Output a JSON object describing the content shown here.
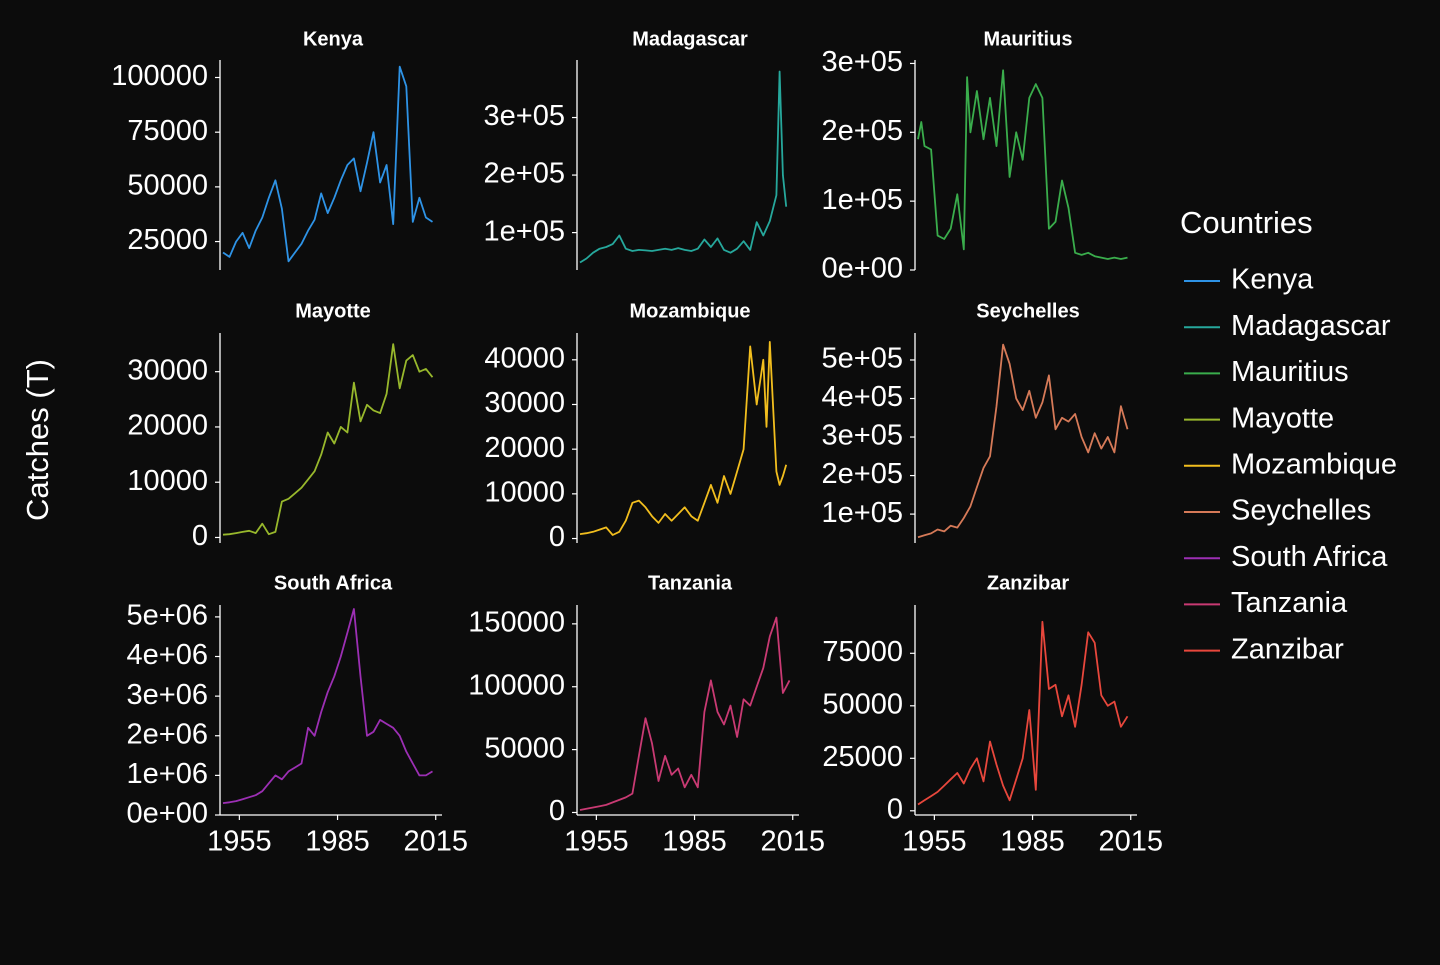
{
  "colors": {
    "background": "#0c0c0c",
    "axis": "#ffffff",
    "text": "#ffffff"
  },
  "chart_data": {
    "type": "line",
    "ylabel": "Catches (T)",
    "xlabel": "",
    "legend": {
      "title": "Countries",
      "position": "right",
      "entries": [
        {
          "label": "Kenya",
          "color": "#2e93e6"
        },
        {
          "label": "Madagascar",
          "color": "#26a89c"
        },
        {
          "label": "Mauritius",
          "color": "#3aad4c"
        },
        {
          "label": "Mayotte",
          "color": "#98b82c"
        },
        {
          "label": "Mozambique",
          "color": "#f2be1e"
        },
        {
          "label": "Seychelles",
          "color": "#d67a58"
        },
        {
          "label": "South Africa",
          "color": "#9c2fb4"
        },
        {
          "label": "Tanzania",
          "color": "#c93a73"
        },
        {
          "label": "Zanzibar",
          "color": "#e8473c"
        }
      ]
    },
    "x_ticks": [
      1955,
      1985,
      2015
    ],
    "xlim": [
      1950,
      2016
    ],
    "grid": false,
    "panels": [
      {
        "title": "Kenya",
        "color": "#2e93e6",
        "ylim": [
          12000,
          108000
        ],
        "y_ticks": [
          25000,
          50000,
          75000,
          100000
        ],
        "y_tick_labels": [
          "25000",
          "50000",
          "75000",
          "100000"
        ],
        "x": [
          1950,
          1952,
          1954,
          1956,
          1958,
          1960,
          1962,
          1964,
          1966,
          1968,
          1970,
          1972,
          1974,
          1976,
          1978,
          1980,
          1982,
          1984,
          1986,
          1988,
          1990,
          1992,
          1994,
          1996,
          1998,
          2000,
          2002,
          2004,
          2006,
          2008,
          2010,
          2012,
          2014
        ],
        "y": [
          20000,
          18000,
          25000,
          29000,
          22000,
          30000,
          36000,
          45000,
          53000,
          40000,
          16000,
          20000,
          24000,
          30000,
          35000,
          47000,
          38000,
          45000,
          53000,
          60000,
          63000,
          48000,
          61000,
          75000,
          52000,
          60000,
          33000,
          105000,
          96000,
          34000,
          45000,
          36000,
          34000
        ]
      },
      {
        "title": "Madagascar",
        "color": "#26a89c",
        "ylim": [
          35000,
          400000
        ],
        "y_ticks": [
          100000,
          200000,
          300000
        ],
        "y_tick_labels": [
          "1e+05",
          "2e+05",
          "3e+05"
        ],
        "x": [
          1950,
          1952,
          1954,
          1956,
          1958,
          1960,
          1962,
          1964,
          1966,
          1968,
          1970,
          1972,
          1974,
          1976,
          1978,
          1980,
          1982,
          1984,
          1986,
          1988,
          1990,
          1992,
          1994,
          1996,
          1998,
          2000,
          2002,
          2004,
          2006,
          2008,
          2010,
          2011,
          2012,
          2013
        ],
        "y": [
          48000,
          55000,
          65000,
          72000,
          75000,
          80000,
          95000,
          72000,
          68000,
          70000,
          69000,
          68000,
          70000,
          72000,
          70000,
          73000,
          70000,
          68000,
          72000,
          88000,
          75000,
          90000,
          70000,
          65000,
          72000,
          85000,
          70000,
          118000,
          95000,
          120000,
          165000,
          380000,
          200000,
          145000
        ]
      },
      {
        "title": "Mauritius",
        "color": "#3aad4c",
        "ylim": [
          0,
          305000
        ],
        "y_ticks": [
          0,
          100000,
          200000,
          300000
        ],
        "y_tick_labels": [
          "0e+00",
          "1e+05",
          "2e+05",
          "3e+05"
        ],
        "x": [
          1950,
          1951,
          1952,
          1954,
          1956,
          1958,
          1960,
          1962,
          1964,
          1965,
          1966,
          1968,
          1970,
          1972,
          1974,
          1976,
          1978,
          1980,
          1982,
          1984,
          1986,
          1988,
          1990,
          1992,
          1994,
          1996,
          1998,
          2000,
          2002,
          2004,
          2006,
          2008,
          2010,
          2012,
          2014
        ],
        "y": [
          190000,
          215000,
          180000,
          175000,
          50000,
          45000,
          60000,
          110000,
          30000,
          280000,
          200000,
          260000,
          190000,
          250000,
          180000,
          290000,
          135000,
          200000,
          160000,
          250000,
          270000,
          250000,
          60000,
          70000,
          130000,
          90000,
          25000,
          22000,
          25000,
          20000,
          18000,
          16000,
          18000,
          16000,
          18000
        ]
      },
      {
        "title": "Mayotte",
        "color": "#98b82c",
        "ylim": [
          -1000,
          37000
        ],
        "y_ticks": [
          0,
          10000,
          20000,
          30000
        ],
        "y_tick_labels": [
          "0",
          "10000",
          "20000",
          "30000"
        ],
        "x": [
          1950,
          1952,
          1954,
          1956,
          1958,
          1960,
          1962,
          1964,
          1966,
          1968,
          1970,
          1972,
          1974,
          1976,
          1978,
          1980,
          1982,
          1984,
          1986,
          1988,
          1990,
          1992,
          1994,
          1996,
          1998,
          2000,
          2002,
          2004,
          2006,
          2008,
          2010,
          2012,
          2014
        ],
        "y": [
          500,
          600,
          800,
          1000,
          1200,
          800,
          2500,
          600,
          1000,
          6500,
          7000,
          8000,
          9000,
          10500,
          12000,
          15000,
          19000,
          17000,
          20000,
          19000,
          28000,
          21000,
          24000,
          23000,
          22500,
          26000,
          35000,
          27000,
          32000,
          33000,
          30000,
          30500,
          29000
        ]
      },
      {
        "title": "Mozambique",
        "color": "#f2be1e",
        "ylim": [
          -1000,
          46000
        ],
        "y_ticks": [
          0,
          10000,
          20000,
          30000,
          40000
        ],
        "y_tick_labels": [
          "0",
          "10000",
          "20000",
          "30000",
          "40000"
        ],
        "x": [
          1950,
          1952,
          1954,
          1956,
          1958,
          1960,
          1962,
          1964,
          1966,
          1968,
          1970,
          1972,
          1974,
          1976,
          1978,
          1980,
          1982,
          1984,
          1986,
          1988,
          1990,
          1992,
          1994,
          1996,
          1998,
          2000,
          2002,
          2004,
          2006,
          2007,
          2008,
          2010,
          2011,
          2012,
          2013
        ],
        "y": [
          1000,
          1200,
          1500,
          2000,
          2500,
          800,
          1500,
          4000,
          8000,
          8500,
          7000,
          5000,
          3500,
          5500,
          4000,
          5500,
          7000,
          5000,
          4000,
          8000,
          12000,
          8000,
          14000,
          10000,
          15000,
          20000,
          43000,
          30000,
          40000,
          25000,
          44000,
          15000,
          12000,
          14000,
          16500
        ]
      },
      {
        "title": "Seychelles",
        "color": "#d67a58",
        "ylim": [
          25000,
          570000
        ],
        "y_ticks": [
          100000,
          200000,
          300000,
          400000,
          500000
        ],
        "y_tick_labels": [
          "1e+05",
          "2e+05",
          "3e+05",
          "4e+05",
          "5e+05"
        ],
        "x": [
          1950,
          1952,
          1954,
          1956,
          1958,
          1960,
          1962,
          1964,
          1966,
          1968,
          1970,
          1972,
          1974,
          1976,
          1978,
          1980,
          1982,
          1984,
          1986,
          1988,
          1990,
          1992,
          1994,
          1996,
          1998,
          2000,
          2002,
          2004,
          2006,
          2008,
          2010,
          2012,
          2014
        ],
        "y": [
          40000,
          45000,
          50000,
          60000,
          55000,
          70000,
          65000,
          90000,
          120000,
          170000,
          220000,
          250000,
          380000,
          540000,
          490000,
          400000,
          370000,
          420000,
          350000,
          390000,
          460000,
          320000,
          350000,
          340000,
          360000,
          300000,
          260000,
          310000,
          270000,
          300000,
          260000,
          380000,
          320000
        ]
      },
      {
        "title": "South Africa",
        "color": "#9c2fb4",
        "ylim": [
          0,
          5300000
        ],
        "y_ticks": [
          0,
          1000000,
          2000000,
          3000000,
          4000000,
          5000000
        ],
        "y_tick_labels": [
          "0e+00",
          "1e+06",
          "2e+06",
          "3e+06",
          "4e+06",
          "5e+06"
        ],
        "x": [
          1950,
          1952,
          1954,
          1956,
          1958,
          1960,
          1962,
          1964,
          1966,
          1968,
          1970,
          1972,
          1974,
          1976,
          1978,
          1980,
          1982,
          1984,
          1986,
          1988,
          1990,
          1992,
          1994,
          1996,
          1998,
          2000,
          2002,
          2004,
          2006,
          2008,
          2010,
          2012,
          2014
        ],
        "y": [
          300000,
          320000,
          350000,
          400000,
          450000,
          500000,
          600000,
          800000,
          1000000,
          900000,
          1100000,
          1200000,
          1300000,
          2200000,
          2000000,
          2600000,
          3100000,
          3500000,
          4000000,
          4600000,
          5200000,
          3500000,
          2000000,
          2100000,
          2400000,
          2300000,
          2200000,
          2000000,
          1600000,
          1300000,
          1000000,
          1000000,
          1100000
        ]
      },
      {
        "title": "Tanzania",
        "color": "#c93a73",
        "ylim": [
          -2000,
          165000
        ],
        "y_ticks": [
          0,
          50000,
          100000,
          150000
        ],
        "y_tick_labels": [
          "0",
          "50000",
          "100000",
          "150000"
        ],
        "x": [
          1950,
          1952,
          1954,
          1956,
          1958,
          1960,
          1962,
          1964,
          1966,
          1968,
          1970,
          1972,
          1974,
          1976,
          1978,
          1980,
          1982,
          1984,
          1986,
          1988,
          1990,
          1992,
          1994,
          1996,
          1998,
          2000,
          2002,
          2004,
          2006,
          2008,
          2010,
          2012,
          2014
        ],
        "y": [
          2000,
          3000,
          4000,
          5000,
          6000,
          8000,
          10000,
          12000,
          15000,
          45000,
          75000,
          55000,
          25000,
          45000,
          30000,
          35000,
          20000,
          30000,
          20000,
          80000,
          105000,
          80000,
          70000,
          85000,
          60000,
          90000,
          85000,
          100000,
          115000,
          140000,
          155000,
          95000,
          105000
        ]
      },
      {
        "title": "Zanzibar",
        "color": "#e8473c",
        "ylim": [
          -2000,
          98000
        ],
        "y_ticks": [
          0,
          25000,
          50000,
          75000
        ],
        "y_tick_labels": [
          "0",
          "25000",
          "50000",
          "75000"
        ],
        "x": [
          1950,
          1952,
          1954,
          1956,
          1958,
          1960,
          1962,
          1964,
          1966,
          1968,
          1970,
          1972,
          1974,
          1976,
          1978,
          1980,
          1982,
          1984,
          1986,
          1988,
          1990,
          1992,
          1994,
          1996,
          1998,
          2000,
          2002,
          2004,
          2006,
          2008,
          2010,
          2012,
          2014
        ],
        "y": [
          3000,
          5000,
          7000,
          9000,
          12000,
          15000,
          18000,
          13000,
          20000,
          25000,
          14000,
          33000,
          22000,
          12000,
          5000,
          15000,
          25000,
          48000,
          10000,
          90000,
          58000,
          60000,
          45000,
          55000,
          40000,
          60000,
          85000,
          80000,
          55000,
          50000,
          52000,
          40000,
          45000
        ]
      }
    ]
  }
}
